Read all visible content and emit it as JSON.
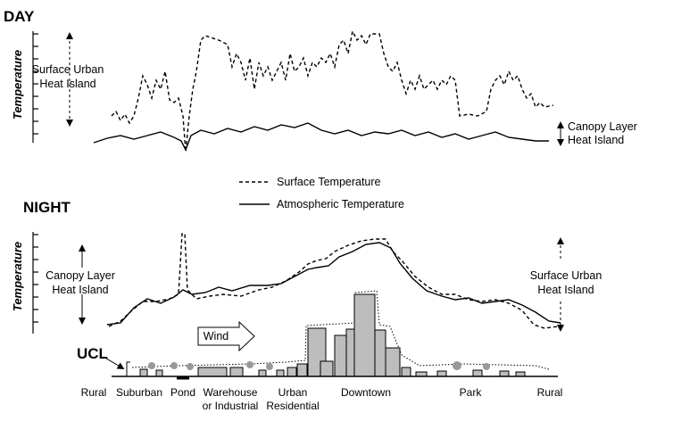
{
  "day": {
    "title": "DAY",
    "y_label": "Temperature",
    "left_label": [
      "Surface Urban",
      "Heat Island"
    ],
    "right_label": [
      "Canopy Layer",
      "Heat Island"
    ]
  },
  "legend": [
    "Surface Temperature",
    "Atmospheric Temperature"
  ],
  "night": {
    "title": "NIGHT",
    "y_label": "Temperature",
    "left_label": [
      "Canopy Layer",
      "Heat Island"
    ],
    "right_label": [
      "Surface Urban",
      "Heat Island"
    ]
  },
  "wind": "Wind",
  "ucl": "UCL",
  "zones": [
    [
      "Rural"
    ],
    [
      "Suburban"
    ],
    [
      "Pond"
    ],
    [
      "Warehouse",
      "or Industrial"
    ],
    [
      "Urban",
      "Residential"
    ],
    [
      "Downtown"
    ],
    [
      "Park"
    ],
    [
      "Rural"
    ]
  ]
}
